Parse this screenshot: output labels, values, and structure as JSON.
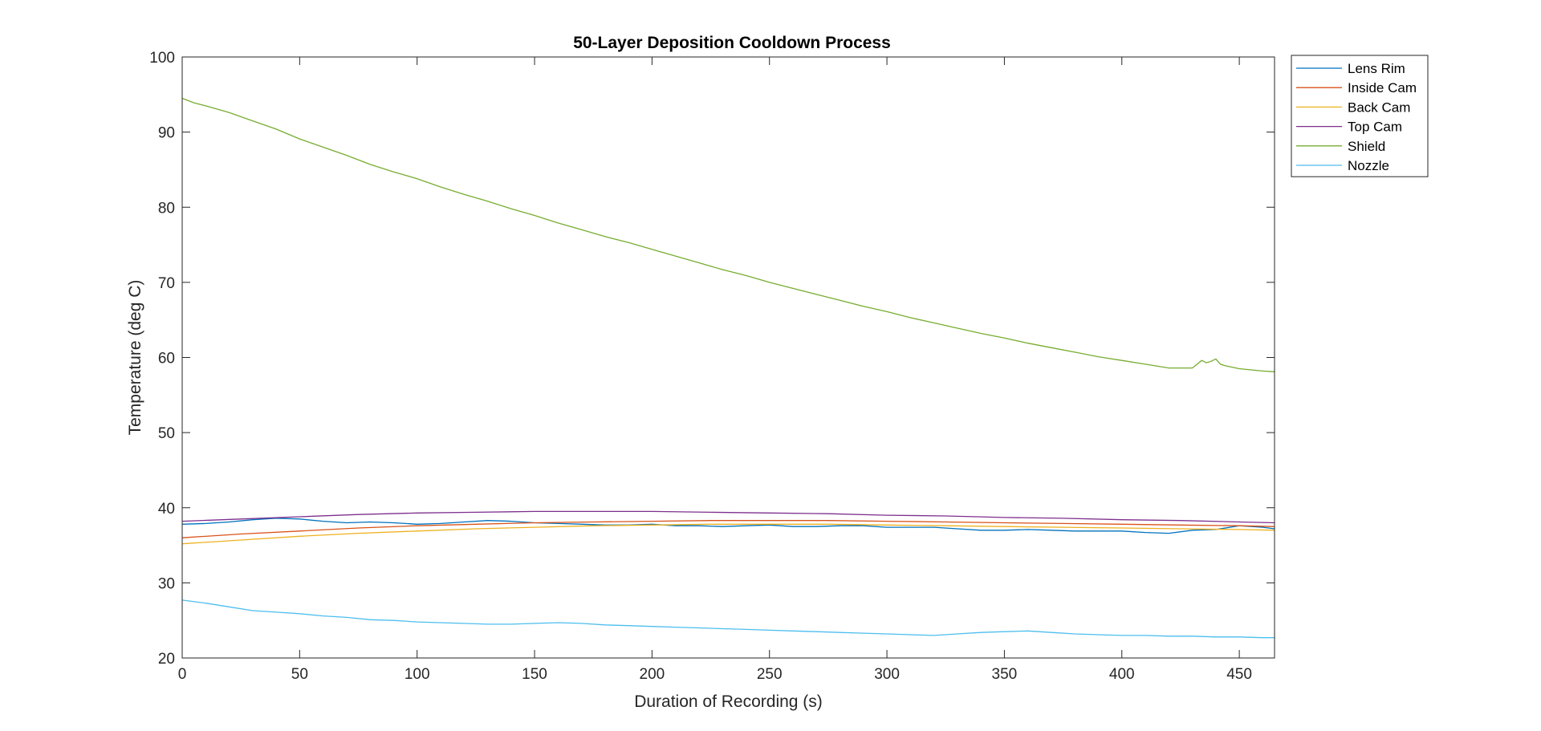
{
  "chart_data": {
    "type": "line",
    "title": "50-Layer Deposition Cooldown Process",
    "xlabel": "Duration of Recording (s)",
    "ylabel": "Temperature (deg C)",
    "xlim": [
      0,
      465
    ],
    "ylim": [
      20,
      100
    ],
    "xticks": [
      0,
      50,
      100,
      150,
      200,
      250,
      300,
      350,
      400,
      450
    ],
    "yticks": [
      20,
      30,
      40,
      50,
      60,
      70,
      80,
      90,
      100
    ],
    "grid": false,
    "legend_position": "outside-top-right",
    "series": [
      {
        "name": "Lens Rim",
        "color": "#0072BD",
        "x": [
          0,
          10,
          20,
          30,
          40,
          50,
          60,
          70,
          80,
          90,
          100,
          110,
          120,
          130,
          140,
          150,
          160,
          170,
          180,
          190,
          200,
          210,
          220,
          230,
          240,
          250,
          260,
          270,
          280,
          290,
          300,
          310,
          320,
          330,
          340,
          350,
          360,
          370,
          380,
          390,
          400,
          410,
          420,
          430,
          440,
          450,
          460,
          465
        ],
        "y": [
          37.8,
          37.9,
          38.1,
          38.4,
          38.6,
          38.5,
          38.2,
          38.0,
          38.1,
          38.0,
          37.8,
          37.9,
          38.1,
          38.3,
          38.2,
          38.0,
          37.9,
          37.8,
          37.7,
          37.7,
          37.8,
          37.6,
          37.6,
          37.5,
          37.6,
          37.7,
          37.5,
          37.5,
          37.6,
          37.6,
          37.4,
          37.4,
          37.4,
          37.2,
          37.0,
          37.0,
          37.1,
          37.0,
          36.9,
          36.9,
          36.9,
          36.7,
          36.6,
          37.0,
          37.1,
          37.6,
          37.4,
          37.2
        ]
      },
      {
        "name": "Inside Cam",
        "color": "#D95319",
        "x": [
          0,
          25,
          50,
          75,
          100,
          125,
          150,
          175,
          200,
          225,
          250,
          275,
          300,
          325,
          350,
          375,
          400,
          425,
          450,
          465
        ],
        "y": [
          36.0,
          36.5,
          36.9,
          37.3,
          37.6,
          37.8,
          38.0,
          38.1,
          38.2,
          38.3,
          38.3,
          38.3,
          38.2,
          38.1,
          38.0,
          37.9,
          37.8,
          37.7,
          37.6,
          37.5
        ]
      },
      {
        "name": "Back Cam",
        "color": "#EDB120",
        "x": [
          0,
          25,
          50,
          75,
          100,
          125,
          150,
          175,
          200,
          225,
          250,
          275,
          300,
          325,
          350,
          375,
          400,
          425,
          450,
          465
        ],
        "y": [
          35.2,
          35.7,
          36.2,
          36.6,
          36.9,
          37.2,
          37.4,
          37.6,
          37.7,
          37.8,
          37.8,
          37.8,
          37.7,
          37.6,
          37.5,
          37.4,
          37.3,
          37.2,
          37.1,
          37.0
        ]
      },
      {
        "name": "Top Cam",
        "color": "#7E2F8E",
        "x": [
          0,
          25,
          50,
          75,
          100,
          125,
          150,
          175,
          200,
          225,
          250,
          275,
          300,
          325,
          350,
          375,
          400,
          425,
          450,
          465
        ],
        "y": [
          38.2,
          38.5,
          38.8,
          39.1,
          39.3,
          39.4,
          39.5,
          39.5,
          39.5,
          39.4,
          39.3,
          39.2,
          39.0,
          38.9,
          38.7,
          38.6,
          38.4,
          38.3,
          38.1,
          38.0
        ]
      },
      {
        "name": "Shield",
        "color": "#77AC30",
        "x": [
          0,
          5,
          10,
          20,
          30,
          40,
          50,
          60,
          70,
          80,
          90,
          100,
          110,
          120,
          130,
          140,
          150,
          160,
          170,
          180,
          190,
          200,
          210,
          220,
          230,
          240,
          250,
          260,
          270,
          280,
          290,
          300,
          310,
          320,
          330,
          340,
          350,
          360,
          370,
          380,
          390,
          400,
          410,
          420,
          430,
          434,
          436,
          438,
          440,
          442,
          444,
          450,
          460,
          465
        ],
        "y": [
          94.5,
          93.9,
          93.5,
          92.6,
          91.5,
          90.4,
          89.1,
          88.0,
          86.9,
          85.7,
          84.7,
          83.8,
          82.7,
          81.7,
          80.8,
          79.8,
          78.9,
          77.9,
          77.0,
          76.1,
          75.3,
          74.4,
          73.5,
          72.6,
          71.7,
          70.9,
          70.0,
          69.2,
          68.4,
          67.6,
          66.8,
          66.1,
          65.3,
          64.6,
          63.9,
          63.2,
          62.6,
          61.9,
          61.3,
          60.7,
          60.1,
          59.6,
          59.1,
          58.6,
          58.6,
          59.6,
          59.3,
          59.5,
          59.8,
          59.1,
          58.9,
          58.5,
          58.2,
          58.1
        ]
      },
      {
        "name": "Nozzle",
        "color": "#4DBEEE",
        "x": [
          0,
          10,
          20,
          30,
          40,
          50,
          60,
          70,
          80,
          90,
          100,
          110,
          120,
          130,
          140,
          150,
          160,
          170,
          180,
          190,
          200,
          210,
          220,
          230,
          240,
          250,
          260,
          270,
          280,
          290,
          300,
          310,
          320,
          330,
          340,
          350,
          360,
          370,
          380,
          390,
          400,
          410,
          420,
          430,
          440,
          450,
          460,
          465
        ],
        "y": [
          27.7,
          27.3,
          26.8,
          26.3,
          26.1,
          25.9,
          25.6,
          25.4,
          25.1,
          25.0,
          24.8,
          24.7,
          24.6,
          24.5,
          24.5,
          24.6,
          24.7,
          24.6,
          24.4,
          24.3,
          24.2,
          24.1,
          24.0,
          23.9,
          23.8,
          23.7,
          23.6,
          23.5,
          23.4,
          23.3,
          23.2,
          23.1,
          23.0,
          23.2,
          23.4,
          23.5,
          23.6,
          23.4,
          23.2,
          23.1,
          23.0,
          23.0,
          22.9,
          22.9,
          22.8,
          22.8,
          22.7,
          22.7
        ]
      }
    ]
  }
}
